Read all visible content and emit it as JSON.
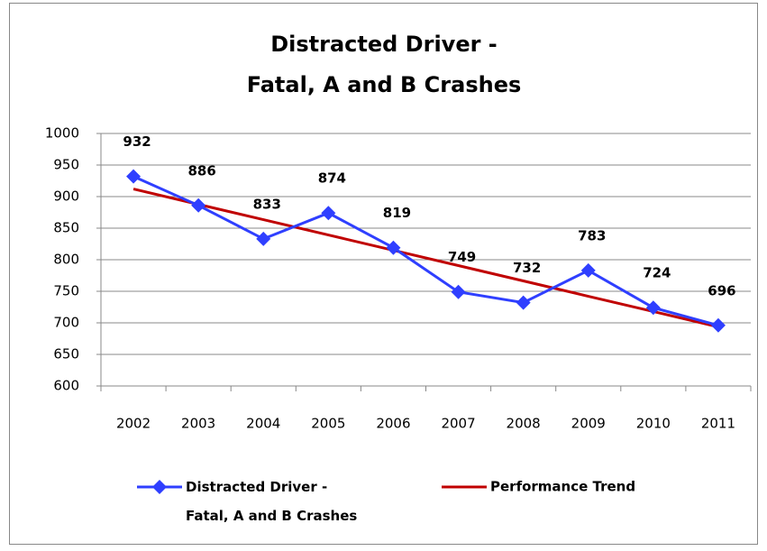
{
  "chart_data": {
    "type": "line",
    "title": [
      "Distracted Driver -",
      "Fatal, A and B Crashes"
    ],
    "categories": [
      "2002",
      "2003",
      "2004",
      "2005",
      "2006",
      "2007",
      "2008",
      "2009",
      "2010",
      "2011"
    ],
    "series": [
      {
        "name": "Distracted Driver - Fatal, A and B Crashes",
        "color": "#2f3fff",
        "marker": "diamond",
        "data_labels": true,
        "values": [
          932,
          886,
          833,
          874,
          819,
          749,
          732,
          783,
          724,
          696
        ]
      },
      {
        "name": "Performance Trend",
        "color": "#c00000",
        "marker": "none",
        "data_labels": false,
        "values": [
          912,
          887.7,
          863.5,
          839.2,
          814.9,
          790.7,
          766.4,
          742.1,
          717.9,
          693.6
        ]
      }
    ],
    "ylim": [
      600,
      1000
    ],
    "yticks": [
      600,
      650,
      700,
      750,
      800,
      850,
      900,
      950,
      1000
    ],
    "grid": true,
    "legend": "bottom"
  }
}
